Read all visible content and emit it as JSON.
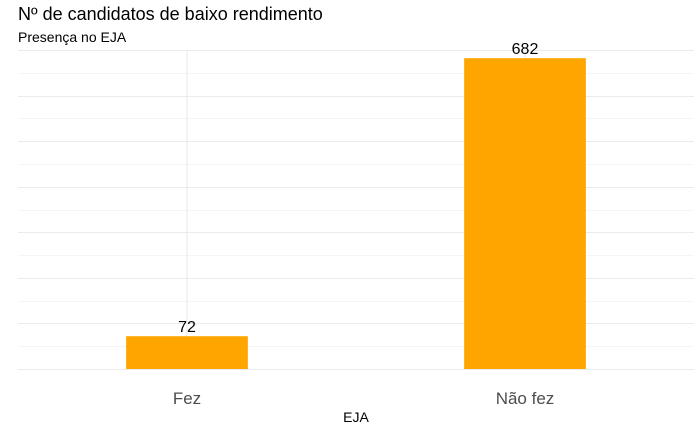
{
  "chart_data": {
    "type": "bar",
    "title": "Nº de candidatos de baixo rendimento",
    "subtitle": "Presença no EJA",
    "xlabel": "EJA",
    "ylabel": "",
    "categories": [
      "Fez",
      "Não fez"
    ],
    "values": [
      72,
      682
    ],
    "data_labels": [
      "72",
      "682"
    ],
    "ylim": [
      0,
      700
    ],
    "y_ticks_shown": false,
    "grid": true,
    "legend": "none",
    "bar_color": "#FFA500",
    "grid_color": "#EBEBEB"
  }
}
